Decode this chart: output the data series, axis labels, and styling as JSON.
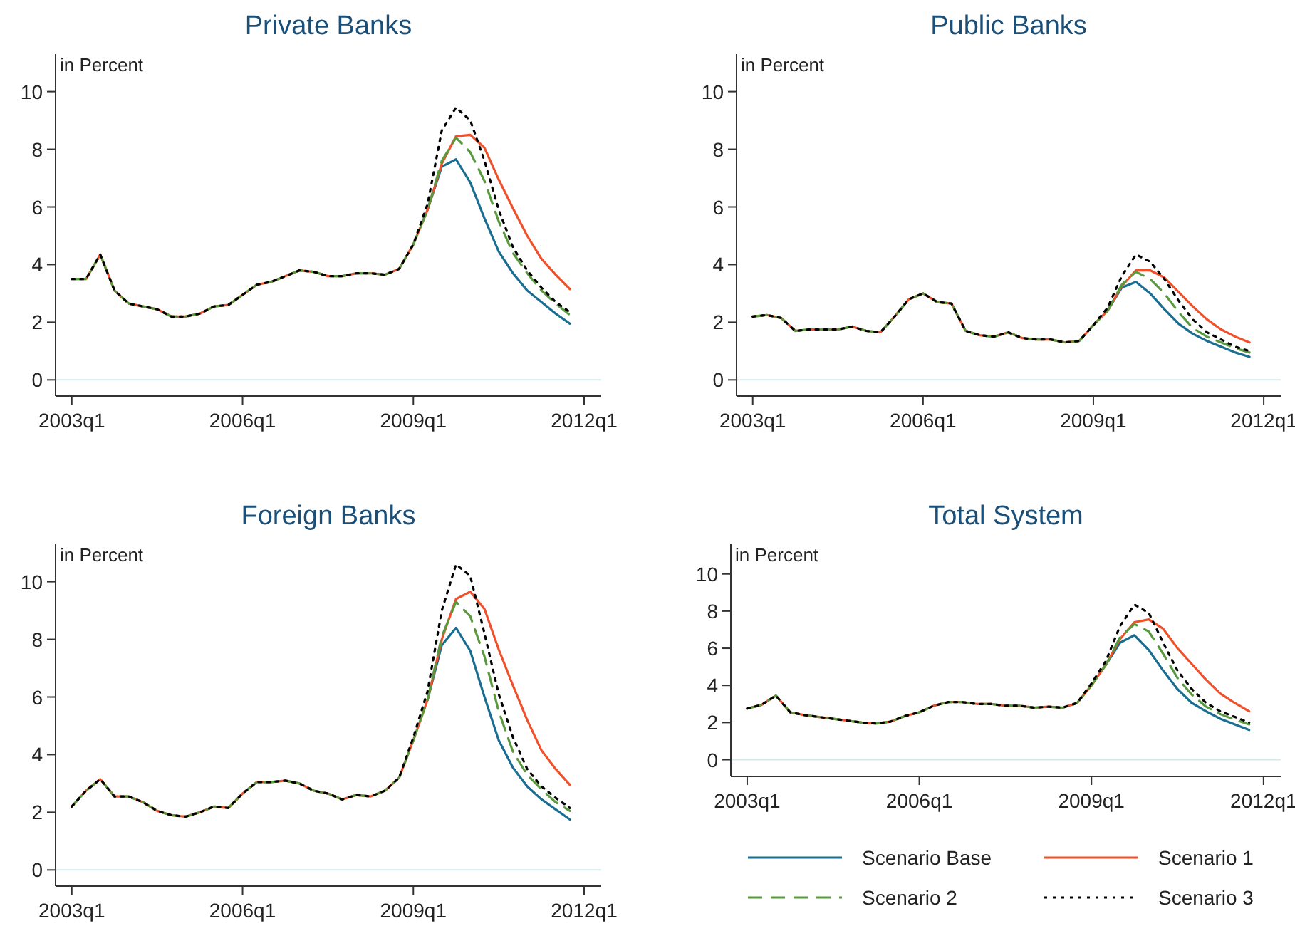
{
  "chart_data": [
    {
      "type": "line",
      "title": "Private Banks",
      "ylabel": "in Percent",
      "categories": [
        "2003q1",
        null,
        null,
        null,
        null,
        null,
        null,
        null,
        null,
        null,
        null,
        null,
        "2006q1",
        null,
        null,
        null,
        null,
        null,
        null,
        null,
        null,
        null,
        null,
        null,
        "2009q1",
        null,
        null,
        null,
        null,
        null,
        null,
        null,
        null,
        null,
        null,
        null,
        "2012q1"
      ],
      "ylim": [
        -0.56,
        11.3
      ],
      "yticks": [
        0,
        2,
        4,
        6,
        8,
        10
      ],
      "grid": false,
      "legend": false,
      "ref_lines": [
        {
          "axis": "y",
          "value": 0,
          "color": "#d6e8ee"
        }
      ],
      "series": [
        {
          "color": "#1a6e92",
          "line_style": "solid",
          "values": [
            null,
            null,
            null,
            null,
            null,
            null,
            null,
            null,
            null,
            null,
            null,
            null,
            null,
            null,
            null,
            null,
            null,
            null,
            null,
            null,
            null,
            null,
            null,
            null,
            null,
            5.9,
            7.4,
            7.65,
            6.85,
            5.6,
            4.45,
            3.7,
            3.1,
            2.7,
            2.3,
            1.95,
            null
          ]
        },
        {
          "color": "#f0502a",
          "line_style": "solid",
          "values": [
            3.5,
            3.5,
            4.35,
            3.1,
            2.65,
            2.55,
            2.45,
            2.2,
            2.2,
            2.3,
            2.55,
            2.6,
            2.95,
            3.3,
            3.4,
            3.6,
            3.8,
            3.75,
            3.6,
            3.6,
            3.7,
            3.7,
            3.65,
            3.85,
            4.7,
            5.9,
            7.5,
            8.45,
            8.5,
            8.05,
            6.95,
            5.95,
            5.0,
            4.2,
            3.65,
            3.15,
            null
          ]
        },
        {
          "color": "#5a9a3e",
          "line_style": "dashed",
          "values": [
            3.5,
            3.5,
            4.35,
            3.1,
            2.65,
            2.55,
            2.45,
            2.2,
            2.2,
            2.3,
            2.55,
            2.6,
            2.95,
            3.3,
            3.4,
            3.6,
            3.8,
            3.75,
            3.6,
            3.6,
            3.7,
            3.7,
            3.65,
            3.85,
            4.7,
            5.9,
            7.6,
            8.4,
            7.9,
            6.9,
            5.5,
            4.4,
            3.7,
            3.1,
            2.65,
            2.25,
            null
          ]
        },
        {
          "color": "#000000",
          "line_style": "dotted",
          "values": [
            3.5,
            3.5,
            4.35,
            3.1,
            2.65,
            2.55,
            2.45,
            2.2,
            2.2,
            2.3,
            2.55,
            2.6,
            2.95,
            3.3,
            3.4,
            3.6,
            3.8,
            3.75,
            3.6,
            3.6,
            3.7,
            3.7,
            3.65,
            3.85,
            4.7,
            6.1,
            8.65,
            9.45,
            9.0,
            7.6,
            5.9,
            4.6,
            3.8,
            3.2,
            2.7,
            2.35,
            null
          ]
        }
      ]
    },
    {
      "type": "line",
      "title": "Public Banks",
      "ylabel": "in Percent",
      "categories": [
        "2003q1",
        null,
        null,
        null,
        null,
        null,
        null,
        null,
        null,
        null,
        null,
        null,
        "2006q1",
        null,
        null,
        null,
        null,
        null,
        null,
        null,
        null,
        null,
        null,
        null,
        "2009q1",
        null,
        null,
        null,
        null,
        null,
        null,
        null,
        null,
        null,
        null,
        null,
        "2012q1"
      ],
      "ylim": [
        -0.56,
        11.3
      ],
      "yticks": [
        0,
        2,
        4,
        6,
        8,
        10
      ],
      "grid": false,
      "legend": false,
      "ref_lines": [
        {
          "axis": "y",
          "value": 0,
          "color": "#d6e8ee"
        }
      ],
      "series": [
        {
          "color": "#1a6e92",
          "line_style": "solid",
          "values": [
            null,
            null,
            null,
            null,
            null,
            null,
            null,
            null,
            null,
            null,
            null,
            null,
            null,
            null,
            null,
            null,
            null,
            null,
            null,
            null,
            null,
            null,
            null,
            null,
            null,
            2.4,
            3.2,
            3.4,
            3.0,
            2.45,
            1.95,
            1.6,
            1.35,
            1.15,
            0.95,
            0.8,
            null
          ]
        },
        {
          "color": "#f0502a",
          "line_style": "solid",
          "values": [
            2.2,
            2.25,
            2.15,
            1.7,
            1.75,
            1.75,
            1.75,
            1.85,
            1.7,
            1.65,
            2.2,
            2.8,
            3.0,
            2.7,
            2.65,
            1.7,
            1.55,
            1.5,
            1.65,
            1.45,
            1.4,
            1.4,
            1.3,
            1.35,
            1.9,
            2.4,
            3.25,
            3.8,
            3.8,
            3.55,
            3.05,
            2.55,
            2.1,
            1.75,
            1.5,
            1.3,
            null
          ]
        },
        {
          "color": "#5a9a3e",
          "line_style": "dashed",
          "values": [
            2.2,
            2.25,
            2.15,
            1.7,
            1.75,
            1.75,
            1.75,
            1.85,
            1.7,
            1.65,
            2.2,
            2.8,
            3.0,
            2.7,
            2.65,
            1.7,
            1.55,
            1.5,
            1.65,
            1.45,
            1.4,
            1.4,
            1.3,
            1.35,
            1.9,
            2.4,
            3.3,
            3.75,
            3.5,
            3.0,
            2.35,
            1.8,
            1.5,
            1.3,
            1.1,
            0.95,
            null
          ]
        },
        {
          "color": "#000000",
          "line_style": "dotted",
          "values": [
            2.2,
            2.25,
            2.15,
            1.7,
            1.75,
            1.75,
            1.75,
            1.85,
            1.7,
            1.65,
            2.2,
            2.8,
            3.0,
            2.7,
            2.65,
            1.7,
            1.55,
            1.5,
            1.65,
            1.45,
            1.4,
            1.4,
            1.3,
            1.35,
            1.9,
            2.5,
            3.6,
            4.35,
            4.1,
            3.5,
            2.75,
            2.1,
            1.65,
            1.4,
            1.15,
            1.0,
            null
          ]
        }
      ]
    },
    {
      "type": "line",
      "title": "Foreign Banks",
      "ylabel": "in Percent",
      "categories": [
        "2003q1",
        null,
        null,
        null,
        null,
        null,
        null,
        null,
        null,
        null,
        null,
        null,
        "2006q1",
        null,
        null,
        null,
        null,
        null,
        null,
        null,
        null,
        null,
        null,
        null,
        "2009q1",
        null,
        null,
        null,
        null,
        null,
        null,
        null,
        null,
        null,
        null,
        null,
        "2012q1"
      ],
      "ylim": [
        -0.56,
        11.3
      ],
      "yticks": [
        0,
        2,
        4,
        6,
        8,
        10
      ],
      "grid": false,
      "legend": false,
      "ref_lines": [
        {
          "axis": "y",
          "value": 0,
          "color": "#d6e8ee"
        }
      ],
      "series": [
        {
          "color": "#1a6e92",
          "line_style": "solid",
          "values": [
            null,
            null,
            null,
            null,
            null,
            null,
            null,
            null,
            null,
            null,
            null,
            null,
            null,
            null,
            null,
            null,
            null,
            null,
            null,
            null,
            null,
            null,
            null,
            null,
            null,
            5.9,
            7.8,
            8.4,
            7.6,
            6.0,
            4.5,
            3.55,
            2.9,
            2.45,
            2.1,
            1.75,
            null
          ]
        },
        {
          "color": "#f0502a",
          "line_style": "solid",
          "values": [
            2.2,
            2.75,
            3.15,
            2.55,
            2.55,
            2.35,
            2.05,
            1.9,
            1.85,
            2.0,
            2.2,
            2.15,
            2.65,
            3.05,
            3.05,
            3.1,
            3.0,
            2.75,
            2.65,
            2.45,
            2.6,
            2.55,
            2.75,
            3.2,
            4.5,
            5.9,
            8.0,
            9.4,
            9.65,
            9.05,
            7.65,
            6.4,
            5.2,
            4.15,
            3.5,
            2.95,
            null
          ]
        },
        {
          "color": "#5a9a3e",
          "line_style": "dashed",
          "values": [
            2.2,
            2.75,
            3.15,
            2.55,
            2.55,
            2.35,
            2.05,
            1.9,
            1.85,
            2.0,
            2.2,
            2.15,
            2.65,
            3.05,
            3.05,
            3.1,
            3.0,
            2.75,
            2.65,
            2.45,
            2.6,
            2.55,
            2.75,
            3.2,
            4.5,
            5.9,
            8.1,
            9.3,
            8.8,
            7.4,
            5.5,
            4.1,
            3.3,
            2.8,
            2.35,
            2.05,
            null
          ]
        },
        {
          "color": "#000000",
          "line_style": "dotted",
          "values": [
            2.2,
            2.75,
            3.15,
            2.55,
            2.55,
            2.35,
            2.05,
            1.9,
            1.85,
            2.0,
            2.2,
            2.15,
            2.65,
            3.05,
            3.05,
            3.1,
            3.0,
            2.75,
            2.65,
            2.45,
            2.6,
            2.55,
            2.75,
            3.2,
            4.6,
            6.2,
            9.0,
            10.6,
            10.2,
            8.2,
            6.1,
            4.6,
            3.5,
            2.9,
            2.5,
            2.15,
            null
          ]
        }
      ]
    },
    {
      "type": "line",
      "title": "Total System",
      "ylabel": "in Percent",
      "categories": [
        "2003q1",
        null,
        null,
        null,
        null,
        null,
        null,
        null,
        null,
        null,
        null,
        null,
        "2006q1",
        null,
        null,
        null,
        null,
        null,
        null,
        null,
        null,
        null,
        null,
        null,
        "2009q1",
        null,
        null,
        null,
        null,
        null,
        null,
        null,
        null,
        null,
        null,
        null,
        "2012q1"
      ],
      "ylim": [
        -0.9,
        11.6
      ],
      "yticks": [
        0,
        2,
        4,
        6,
        8,
        10
      ],
      "grid": false,
      "legend": "bottom",
      "ref_lines": [
        {
          "axis": "y",
          "value": 0,
          "color": "#d6e8ee"
        }
      ],
      "series": [
        {
          "name": "Scenario Base",
          "color": "#1a6e92",
          "line_style": "solid",
          "values": [
            null,
            null,
            null,
            null,
            null,
            null,
            null,
            null,
            null,
            null,
            null,
            null,
            null,
            null,
            null,
            null,
            null,
            null,
            null,
            null,
            null,
            null,
            null,
            null,
            null,
            5.1,
            6.3,
            6.7,
            5.9,
            4.8,
            3.8,
            3.05,
            2.6,
            2.2,
            1.9,
            1.6,
            null
          ]
        },
        {
          "name": "Scenario 1",
          "color": "#f0502a",
          "line_style": "solid",
          "values": [
            2.75,
            2.95,
            3.45,
            2.55,
            2.4,
            2.3,
            2.2,
            2.1,
            2.0,
            1.95,
            2.05,
            2.35,
            2.55,
            2.9,
            3.1,
            3.1,
            3.0,
            3.0,
            2.9,
            2.9,
            2.8,
            2.85,
            2.8,
            3.05,
            4.0,
            5.1,
            6.5,
            7.4,
            7.55,
            7.05,
            6.0,
            5.15,
            4.3,
            3.55,
            3.05,
            2.6,
            null
          ]
        },
        {
          "name": "Scenario 2",
          "color": "#5a9a3e",
          "line_style": "dashed",
          "values": [
            2.75,
            2.95,
            3.45,
            2.55,
            2.4,
            2.3,
            2.2,
            2.1,
            2.0,
            1.95,
            2.05,
            2.35,
            2.55,
            2.9,
            3.1,
            3.1,
            3.0,
            3.0,
            2.9,
            2.9,
            2.8,
            2.85,
            2.8,
            3.05,
            4.0,
            5.1,
            6.6,
            7.3,
            6.9,
            5.7,
            4.4,
            3.5,
            2.85,
            2.45,
            2.15,
            1.9,
            null
          ]
        },
        {
          "name": "Scenario 3",
          "color": "#000000",
          "line_style": "dotted",
          "values": [
            2.75,
            2.95,
            3.45,
            2.55,
            2.4,
            2.3,
            2.2,
            2.1,
            2.0,
            1.95,
            2.05,
            2.35,
            2.55,
            2.9,
            3.1,
            3.1,
            3.0,
            3.0,
            2.9,
            2.9,
            2.8,
            2.85,
            2.8,
            3.05,
            4.1,
            5.3,
            7.2,
            8.35,
            7.9,
            6.3,
            4.8,
            3.8,
            3.05,
            2.6,
            2.3,
            2.0,
            null
          ]
        }
      ]
    }
  ]
}
